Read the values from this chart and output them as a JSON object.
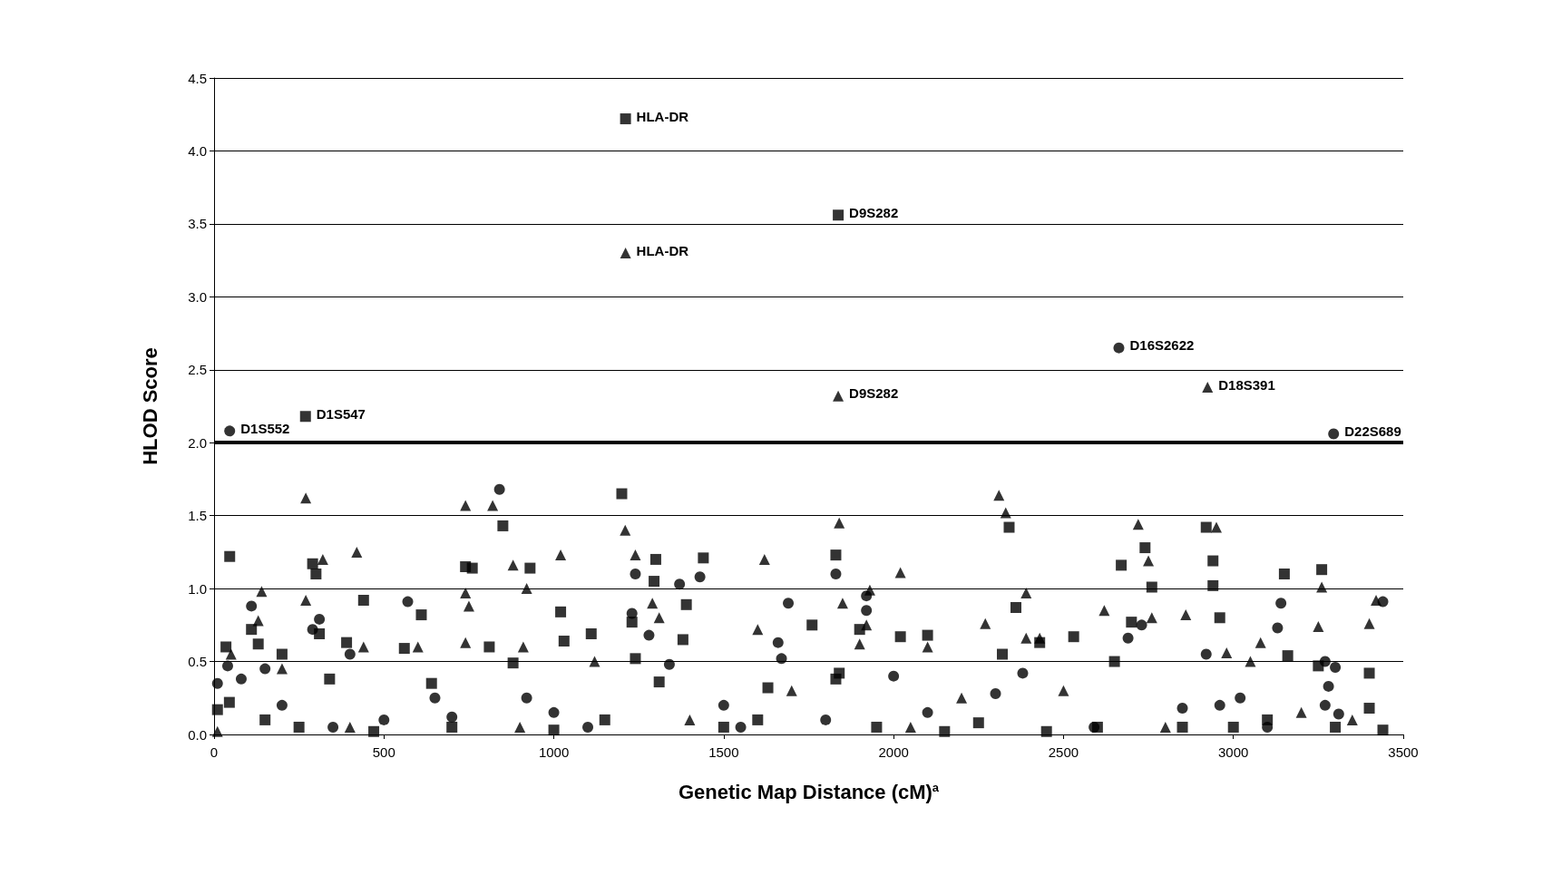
{
  "chart_data": {
    "type": "scatter",
    "xlabel": "Genetic Map Distance (cM)$^{a}$",
    "ylabel": "HLOD Score",
    "xlim": [
      0,
      3500
    ],
    "xticks": [
      0,
      500,
      1000,
      1500,
      2000,
      2500,
      3000,
      3500
    ],
    "ylim": [
      0,
      4.5
    ],
    "yticks": [
      {
        "value": 0,
        "label": "0.0"
      },
      {
        "value": 0.5,
        "label": "0.5"
      },
      {
        "value": 1,
        "label": "1.0"
      },
      {
        "value": 1.5,
        "label": "1.5"
      },
      {
        "value": 2,
        "label": "2.0"
      },
      {
        "value": 2.5,
        "label": "2.5"
      },
      {
        "value": 3,
        "label": "3.0"
      },
      {
        "value": 3.5,
        "label": "3.5"
      },
      {
        "value": 4,
        "label": "4.0"
      },
      {
        "value": 4.5,
        "label": "4.5"
      }
    ],
    "grid": "y",
    "ref_lines": [
      {
        "axis": "y",
        "value": 2,
        "color": "#000000"
      }
    ],
    "series": [
      {
        "marker": "square",
        "color": "#000000",
        "x": [
          1211,
          1837,
          269,
          46,
          35,
          45,
          110,
          130,
          200,
          290,
          300,
          310,
          340,
          390,
          440,
          560,
          610,
          640,
          740,
          760,
          810,
          850,
          880,
          930,
          1020,
          1030,
          1110,
          1200,
          1230,
          1240,
          1300,
          1295,
          1310,
          1380,
          1390,
          1440,
          1630,
          1760,
          1830,
          1830,
          1840,
          1900,
          2020,
          2100,
          2320,
          2340,
          2360,
          2430,
          2530,
          2650,
          2670,
          2700,
          2740,
          2760,
          2920,
          2940,
          2940,
          2960,
          3150,
          3160,
          3260,
          3400,
          3400,
          3440,
          3250,
          10,
          150,
          250,
          470,
          700,
          1000,
          1150,
          1500,
          1600,
          1950,
          2150,
          2250,
          2450,
          2600,
          2850,
          3000,
          3100,
          3300
        ],
        "values": [
          4.22,
          3.56,
          2.18,
          1.22,
          0.6,
          0.22,
          0.72,
          0.62,
          0.55,
          1.17,
          1.1,
          0.69,
          0.38,
          0.63,
          0.92,
          0.59,
          0.82,
          0.35,
          1.15,
          1.14,
          0.6,
          1.43,
          0.49,
          1.14,
          0.84,
          0.64,
          0.69,
          1.65,
          0.77,
          0.52,
          1.2,
          1.05,
          0.36,
          0.65,
          0.89,
          1.21,
          0.32,
          0.75,
          1.23,
          0.38,
          0.42,
          0.72,
          0.67,
          0.68,
          0.55,
          1.42,
          0.87,
          0.63,
          0.67,
          0.5,
          1.16,
          0.77,
          1.28,
          1.01,
          1.42,
          1.19,
          1.02,
          0.8,
          1.1,
          0.54,
          1.13,
          0.42,
          0.18,
          0.03,
          0.47,
          0.17,
          0.1,
          0.05,
          0.02,
          0.05,
          0.03,
          0.1,
          0.05,
          0.1,
          0.05,
          0.02,
          0.08,
          0.02,
          0.05,
          0.05,
          0.05,
          0.1,
          0.05
        ]
      },
      {
        "marker": "circle",
        "color": "#000000",
        "x": [
          46,
          2663,
          3295,
          10,
          40,
          80,
          110,
          150,
          290,
          310,
          400,
          570,
          840,
          920,
          1230,
          1240,
          1280,
          1340,
          1370,
          1430,
          1660,
          1670,
          1690,
          1830,
          1920,
          1920,
          2000,
          2380,
          2690,
          2730,
          2920,
          2960,
          3130,
          3140,
          3270,
          3280,
          3300,
          3440,
          3270,
          3020,
          2590,
          2100,
          1800,
          1500,
          1000,
          700,
          500,
          200,
          2850,
          2300,
          1550,
          1100,
          650,
          350,
          3100,
          3310
        ],
        "values": [
          2.08,
          2.65,
          2.06,
          0.35,
          0.47,
          0.38,
          0.88,
          0.45,
          0.72,
          0.79,
          0.55,
          0.91,
          1.68,
          0.25,
          0.83,
          1.1,
          0.68,
          0.48,
          1.03,
          1.08,
          0.63,
          0.52,
          0.9,
          1.1,
          0.95,
          0.85,
          0.4,
          0.42,
          0.66,
          0.75,
          0.55,
          0.2,
          0.73,
          0.9,
          0.5,
          0.33,
          0.46,
          0.91,
          0.2,
          0.25,
          0.05,
          0.15,
          0.1,
          0.2,
          0.15,
          0.12,
          0.1,
          0.2,
          0.18,
          0.28,
          0.05,
          0.05,
          0.25,
          0.05,
          0.05,
          0.14
        ]
      },
      {
        "marker": "triangle",
        "color": "#000000",
        "x": [
          1211,
          1837,
          2924,
          270,
          270,
          140,
          130,
          320,
          420,
          440,
          740,
          740,
          750,
          740,
          820,
          880,
          920,
          910,
          1020,
          1210,
          1240,
          1290,
          1310,
          1600,
          1620,
          1840,
          1850,
          1900,
          1930,
          1920,
          2020,
          2100,
          2270,
          2310,
          2330,
          2390,
          2390,
          2430,
          2620,
          2720,
          2750,
          2760,
          2860,
          2950,
          2980,
          3050,
          3080,
          3260,
          3250,
          3420,
          3400,
          50,
          200,
          600,
          1120,
          1700,
          2200,
          2500,
          3350,
          10,
          400,
          900,
          1400,
          2050,
          2800,
          3200
        ],
        "values": [
          3.3,
          2.32,
          2.38,
          1.62,
          0.92,
          0.98,
          0.78,
          1.2,
          1.25,
          0.6,
          1.57,
          0.97,
          0.88,
          0.63,
          1.57,
          1.16,
          1.0,
          0.6,
          1.23,
          1.4,
          1.23,
          0.9,
          0.8,
          0.72,
          1.2,
          1.45,
          0.9,
          0.62,
          0.99,
          0.75,
          1.11,
          0.6,
          0.76,
          1.64,
          1.52,
          0.97,
          0.66,
          0.66,
          0.85,
          1.44,
          1.19,
          0.8,
          0.82,
          1.42,
          0.56,
          0.5,
          0.63,
          1.01,
          0.74,
          0.92,
          0.76,
          0.55,
          0.45,
          0.6,
          0.5,
          0.3,
          0.25,
          0.3,
          0.1,
          0.02,
          0.05,
          0.05,
          0.1,
          0.05,
          0.05,
          0.15
        ]
      }
    ],
    "annotations": [
      {
        "text": "HLA-DR",
        "x": 1211,
        "y": 4.22
      },
      {
        "text": "D9S282",
        "x": 1837,
        "y": 3.56
      },
      {
        "text": "HLA-DR",
        "x": 1211,
        "y": 3.3
      },
      {
        "text": "D16S2622",
        "x": 2663,
        "y": 2.65
      },
      {
        "text": "D18S391",
        "x": 2924,
        "y": 2.38
      },
      {
        "text": "D9S282",
        "x": 1837,
        "y": 2.32
      },
      {
        "text": "D1S552",
        "x": 46,
        "y": 2.08
      },
      {
        "text": "D1S547",
        "x": 269,
        "y": 2.18
      },
      {
        "text": "D22S689",
        "x": 3295,
        "y": 2.06
      }
    ]
  }
}
